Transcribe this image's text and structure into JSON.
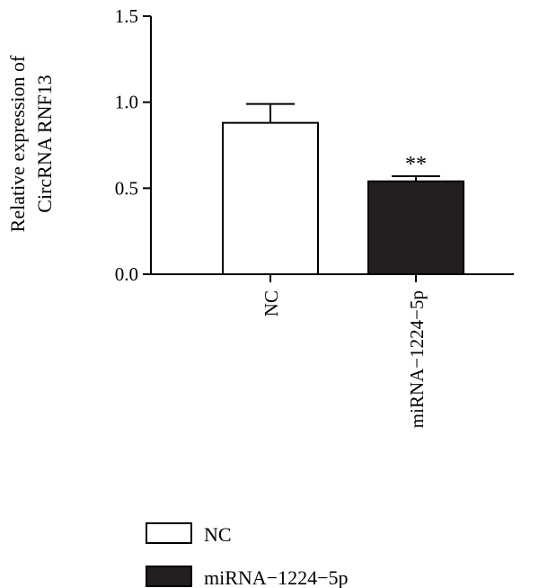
{
  "chart_data": {
    "type": "bar",
    "title": "",
    "ylabel_lines": [
      "Relative expression of",
      "CircRNA RNF13"
    ],
    "xlabel": "",
    "categories": [
      "NC",
      "miRNA−1224−5p"
    ],
    "values": [
      0.88,
      0.54
    ],
    "errors": [
      0.11,
      0.03
    ],
    "significance": [
      "",
      "**"
    ],
    "ylim": [
      0,
      1.5
    ],
    "yticks": [
      {
        "value": 0.0,
        "label": "0.0"
      },
      {
        "value": 0.5,
        "label": "0.5"
      },
      {
        "value": 1.0,
        "label": "1.0"
      },
      {
        "value": 1.5,
        "label": "1.5"
      }
    ],
    "bar_fills": [
      "#ffffff",
      "#231f20"
    ],
    "grid": false,
    "legend": {
      "placement": "bottom-left",
      "entries": [
        {
          "label": "NC",
          "fill": "#ffffff"
        },
        {
          "label": "miRNA−1224−5p",
          "fill": "#231f20"
        }
      ]
    }
  }
}
